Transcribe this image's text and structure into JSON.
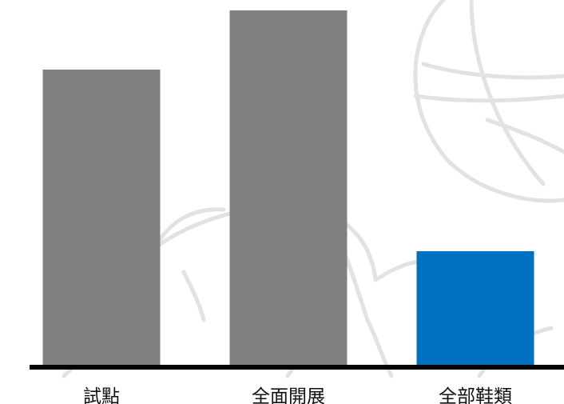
{
  "chart_data": {
    "type": "bar",
    "categories": [
      "試點",
      "全面開展",
      "全部鞋類"
    ],
    "values": [
      372,
      446,
      145
    ],
    "ylim": [
      0,
      455
    ],
    "grid": false,
    "legend": "none",
    "title": "",
    "xlabel": "",
    "ylabel": "",
    "colors": [
      "#808080",
      "#808080",
      "#0070c0"
    ],
    "axis_color": "#000000"
  },
  "decoration": {
    "watermark": "basketball-icon",
    "watermark_color": "#e2e2e2"
  }
}
